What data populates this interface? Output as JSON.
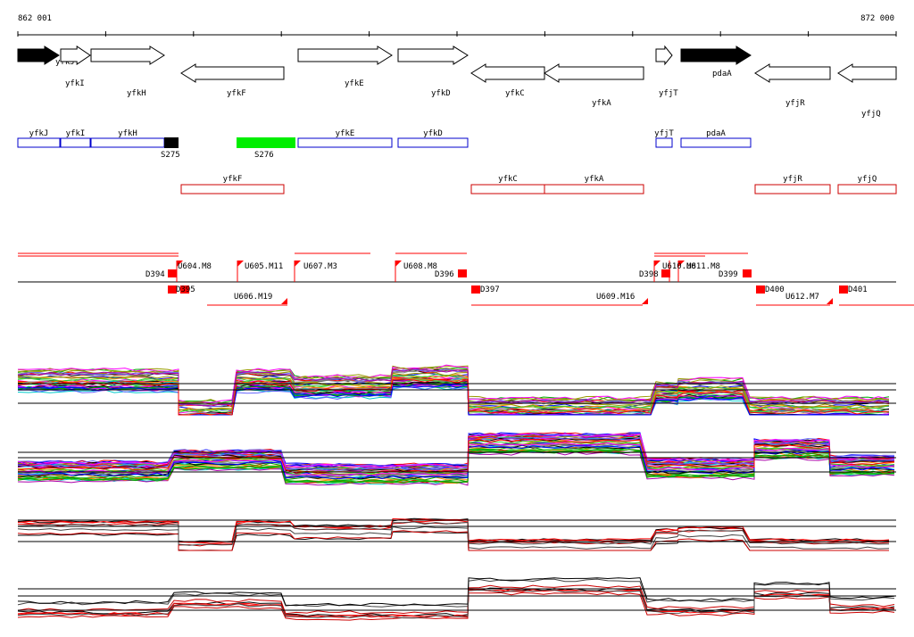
{
  "coordinates": {
    "start": "862 001",
    "end": "872 000"
  },
  "genes": [
    {
      "name": "yfkJ",
      "strand": "+",
      "filled": true
    },
    {
      "name": "yfkI",
      "strand": "+",
      "filled": false
    },
    {
      "name": "yfkH",
      "strand": "+",
      "filled": false
    },
    {
      "name": "yfkF",
      "strand": "-",
      "filled": false
    },
    {
      "name": "yfkE",
      "strand": "+",
      "filled": false
    },
    {
      "name": "yfkD",
      "strand": "+",
      "filled": false
    },
    {
      "name": "yfkC",
      "strand": "-",
      "filled": false
    },
    {
      "name": "yfkA",
      "strand": "-",
      "filled": false
    },
    {
      "name": "yfjT",
      "strand": "+",
      "filled": false
    },
    {
      "name": "pdaA",
      "strand": "+",
      "filled": true
    },
    {
      "name": "yfjR",
      "strand": "-",
      "filled": false
    },
    {
      "name": "yfjQ",
      "strand": "-",
      "filled": false
    }
  ],
  "plus_boxes": [
    "yfkJ",
    "yfkI",
    "yfkH",
    "yfkE",
    "yfkD",
    "yfjT",
    "pdaA"
  ],
  "minus_boxes": [
    "yfkF",
    "yfkC",
    "yfkA",
    "yfjR",
    "yfjQ"
  ],
  "special_boxes": [
    {
      "label": "S275",
      "color": "#000000"
    },
    {
      "label": "S276",
      "color": "#00ee00"
    }
  ],
  "segment_labels": [
    "D394",
    "U604.M8",
    "U605.M11",
    "U607.M3",
    "U608.M8",
    "D396",
    "D398",
    "U610.M8",
    "U611.M8",
    "D399",
    "D395",
    "U606.M19",
    "D397",
    "U609.M16",
    "D400",
    "U612.M7",
    "D401"
  ],
  "colors": {
    "plus_box": "#0000cc",
    "minus_box": "#cc0000",
    "segment": "#ff0000",
    "special_green": "#00ee00"
  }
}
